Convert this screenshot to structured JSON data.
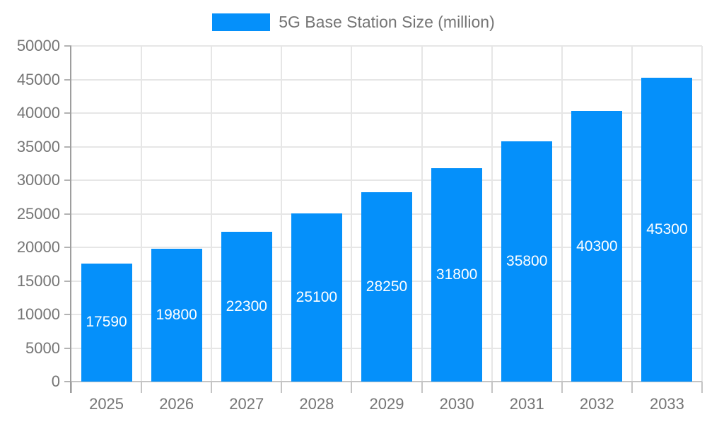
{
  "chart_data": {
    "type": "bar",
    "title": "",
    "legend": {
      "label": "5G Base Station Size (million)",
      "position": "top"
    },
    "categories": [
      "2025",
      "2026",
      "2027",
      "2028",
      "2029",
      "2030",
      "2031",
      "2032",
      "2033"
    ],
    "series": [
      {
        "name": "5G Base Station Size (million)",
        "values": [
          17590,
          19800,
          22300,
          25100,
          28250,
          31800,
          35800,
          40300,
          45300
        ]
      }
    ],
    "data_labels": [
      "17590",
      "19800",
      "22300",
      "25100",
      "28250",
      "31800",
      "35800",
      "40300",
      "45300"
    ],
    "ylim": [
      0,
      50000
    ],
    "ytick_step": 5000,
    "yticks": [
      0,
      5000,
      10000,
      15000,
      20000,
      25000,
      30000,
      35000,
      40000,
      45000,
      50000
    ],
    "grid": true,
    "colors": {
      "bar": "#0590fa",
      "bar_value_text": "#ffffff",
      "axis_text": "#757575",
      "gridline": "#e6e6e6",
      "y_axis_line": "#9e9e9e",
      "x_axis_line": "#c4c4c4",
      "y_tick_mark": "#b3b3b3",
      "x_tick_mark": "#c4c4c4",
      "background": "#ffffff"
    }
  }
}
